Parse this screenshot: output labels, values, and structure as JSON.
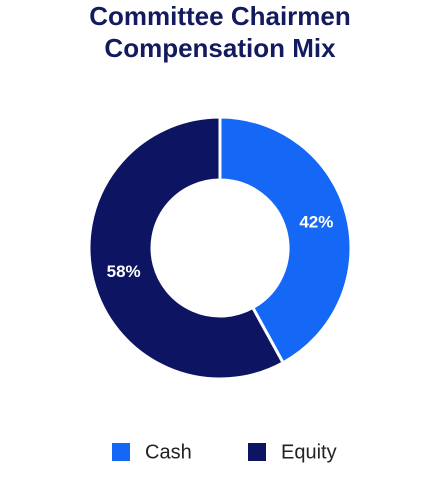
{
  "chart_data": {
    "type": "donut",
    "title": [
      "Committee Chairmen",
      "Compensation Mix"
    ],
    "categories": [
      "Cash",
      "Equity"
    ],
    "values": [
      42,
      58
    ],
    "value_labels": [
      "42%",
      "58%"
    ],
    "colors": [
      "#1468f5",
      "#0d1562"
    ]
  }
}
